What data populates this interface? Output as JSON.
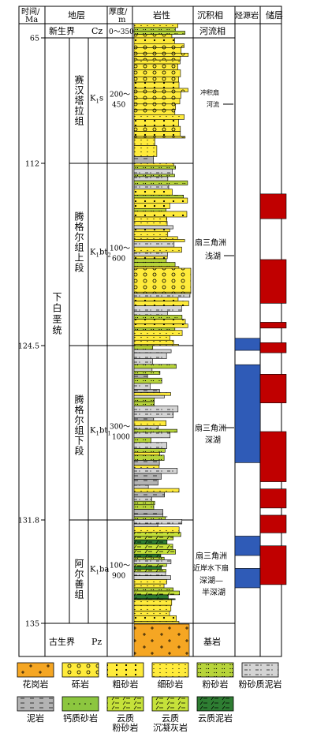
{
  "headers": {
    "time": "时间/",
    "time_unit": "Ma",
    "strata": "地层",
    "thickness": "厚度/",
    "thickness_unit": "m",
    "lithology": "岩性",
    "facies": "沉积相",
    "source_rock": "烃源岩",
    "reservoir": "储层"
  },
  "ages": [
    {
      "label": "65",
      "ma": 65
    },
    {
      "label": "112",
      "ma": 112
    },
    {
      "label": "124.5",
      "ma": 124.5
    },
    {
      "label": "131.8",
      "ma": 131.8
    },
    {
      "label": "135",
      "ma": 135
    }
  ],
  "units": [
    {
      "era": "新生界",
      "code": "Cz",
      "thickness": "0～350",
      "facies": "河流相",
      "top": 65,
      "bottom": 65
    },
    {
      "name": "赛汉塔拉组",
      "code_base": "K",
      "code_sub": "1",
      "code_rest": "s",
      "code_sub2": "",
      "thickness_a": "200～",
      "thickness_b": "450",
      "facies_a": "冲积扇",
      "facies_b": "河流",
      "top": 65,
      "bottom": 112
    },
    {
      "name": "腾格尔组上段",
      "code_base": "K",
      "code_sub": "1",
      "code_rest": "bt",
      "code_sub2": "2",
      "thickness_a": "100～",
      "thickness_b": "600",
      "facies_a": "扇三角洲",
      "facies_b": "浅湖",
      "top": 112,
      "bottom": 124.5
    },
    {
      "name": "腾格尔组下段",
      "code_base": "K",
      "code_sub": "1",
      "code_rest": "bt",
      "code_sub2": "1",
      "thickness_a": "300～",
      "thickness_b": "1000",
      "facies_a": "扇三角洲",
      "facies_b": "深湖",
      "top": 124.5,
      "bottom": 131.8
    },
    {
      "name": "阿尔善组",
      "code_base": "K",
      "code_sub": "1",
      "code_rest": "ba",
      "code_sub2": "",
      "thickness_a": "100～",
      "thickness_b": "900",
      "facies_a": "扇三角洲",
      "facies_b": "近岸水下扇",
      "facies_c": "深湖—",
      "facies_d": "半深湖",
      "top": 131.8,
      "bottom": 135
    },
    {
      "era": "古生界",
      "code": "Pz",
      "facies": "基岩",
      "top": 135,
      "bottom": 136.5
    }
  ],
  "system": "下白垩统",
  "legend": [
    {
      "key": "granite",
      "label": "花岗岩",
      "color": "#f5a623"
    },
    {
      "key": "conglomerate",
      "label": "砾岩",
      "color": "#ffeb3b"
    },
    {
      "key": "coarse_sandstone",
      "label": "粗砂岩",
      "color": "#ffeb3b"
    },
    {
      "key": "fine_sandstone",
      "label": "细砂岩",
      "color": "#ffeb3b"
    },
    {
      "key": "siltstone",
      "label": "粉砂岩",
      "color": "#b7d43a"
    },
    {
      "key": "silty_mudstone",
      "label": "粉砂质泥岩",
      "color": "#d4d4d4"
    },
    {
      "key": "mudstone",
      "label": "泥岩",
      "color": "#b3b3b3"
    },
    {
      "key": "calcareous_sandstone",
      "label": "钙质砂岩",
      "color": "#8cc63f"
    },
    {
      "key": "dolomitic_siltstone",
      "label": "云质粉砂岩",
      "color": "#c6e23a"
    },
    {
      "key": "dolomitic_tuff",
      "label": "云质沉凝灰岩",
      "color": "#d9ec6a"
    },
    {
      "key": "dolomitic_mudstone",
      "label": "云质泥岩",
      "color": "#2e7d32"
    }
  ],
  "legend_lines": {
    "dolomitic_siltstone": [
      "云质",
      "粉砂岩"
    ],
    "dolomitic_tuff": [
      "云质",
      "沉凝灰岩"
    ]
  },
  "source_rock_intervals": [
    {
      "top": 124.0,
      "bottom": 124.7
    },
    {
      "top": 125.3,
      "bottom": 129.4
    },
    {
      "top": 132.3,
      "bottom": 132.9
    },
    {
      "top": 133.3,
      "bottom": 133.9
    }
  ],
  "reservoir_intervals": [
    {
      "top": 114.1,
      "bottom": 115.8
    },
    {
      "top": 118.6,
      "bottom": 121.6
    },
    {
      "top": 122.9,
      "bottom": 123.3
    },
    {
      "top": 124.3,
      "bottom": 124.8
    },
    {
      "top": 125.7,
      "bottom": 126.9
    },
    {
      "top": 128.1,
      "bottom": 130.2
    },
    {
      "top": 130.5,
      "bottom": 131.3
    },
    {
      "top": 131.6,
      "bottom": 132.2
    },
    {
      "top": 132.6,
      "bottom": 133.8
    }
  ],
  "colors": {
    "reservoir": "#c00000",
    "source_rock": "#2f5bb7",
    "line": "#000000"
  }
}
